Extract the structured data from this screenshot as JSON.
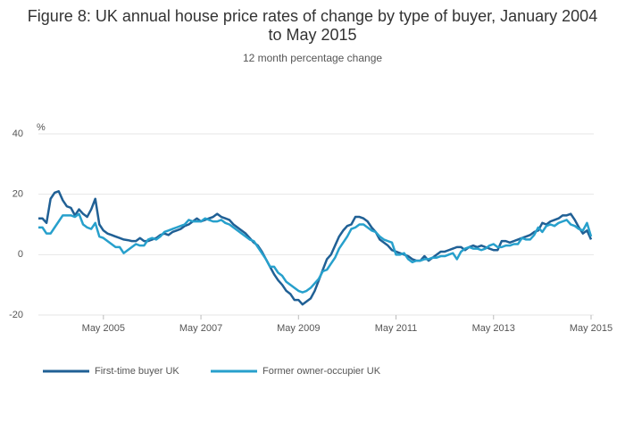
{
  "chart_data": {
    "type": "line",
    "title": "Figure 8: UK annual house price rates of change by type of buyer, January 2004 to May 2015",
    "subtitle": "12 month percentage change",
    "y_label": "%",
    "x": [
      "2004-01",
      "2004-02",
      "2004-03",
      "2004-04",
      "2004-05",
      "2004-06",
      "2004-07",
      "2004-08",
      "2004-09",
      "2004-10",
      "2004-11",
      "2004-12",
      "2005-01",
      "2005-02",
      "2005-03",
      "2005-04",
      "2005-05",
      "2005-06",
      "2005-07",
      "2005-08",
      "2005-09",
      "2005-10",
      "2005-11",
      "2005-12",
      "2006-01",
      "2006-02",
      "2006-03",
      "2006-04",
      "2006-05",
      "2006-06",
      "2006-07",
      "2006-08",
      "2006-09",
      "2006-10",
      "2006-11",
      "2006-12",
      "2007-01",
      "2007-02",
      "2007-03",
      "2007-04",
      "2007-05",
      "2007-06",
      "2007-07",
      "2007-08",
      "2007-09",
      "2007-10",
      "2007-11",
      "2007-12",
      "2008-01",
      "2008-02",
      "2008-03",
      "2008-04",
      "2008-05",
      "2008-06",
      "2008-07",
      "2008-08",
      "2008-09",
      "2008-10",
      "2008-11",
      "2008-12",
      "2009-01",
      "2009-02",
      "2009-03",
      "2009-04",
      "2009-05",
      "2009-06",
      "2009-07",
      "2009-08",
      "2009-09",
      "2009-10",
      "2009-11",
      "2009-12",
      "2010-01",
      "2010-02",
      "2010-03",
      "2010-04",
      "2010-05",
      "2010-06",
      "2010-07",
      "2010-08",
      "2010-09",
      "2010-10",
      "2010-11",
      "2010-12",
      "2011-01",
      "2011-02",
      "2011-03",
      "2011-04",
      "2011-05",
      "2011-06",
      "2011-07",
      "2011-08",
      "2011-09",
      "2011-10",
      "2011-11",
      "2011-12",
      "2012-01",
      "2012-02",
      "2012-03",
      "2012-04",
      "2012-05",
      "2012-06",
      "2012-07",
      "2012-08",
      "2012-09",
      "2012-10",
      "2012-11",
      "2012-12",
      "2013-01",
      "2013-02",
      "2013-03",
      "2013-04",
      "2013-05",
      "2013-06",
      "2013-07",
      "2013-08",
      "2013-09",
      "2013-10",
      "2013-11",
      "2013-12",
      "2014-01",
      "2014-02",
      "2014-03",
      "2014-04",
      "2014-05",
      "2014-06",
      "2014-07",
      "2014-08",
      "2014-09",
      "2014-10",
      "2014-11",
      "2014-12",
      "2015-01",
      "2015-02",
      "2015-03",
      "2015-04",
      "2015-05"
    ],
    "series": [
      {
        "name": "First-time buyer UK",
        "color": "#206095",
        "values": [
          12,
          12,
          10.5,
          18.5,
          20.5,
          21,
          18,
          16,
          15.5,
          13,
          15,
          13.5,
          12.5,
          15,
          18.5,
          10,
          8,
          7,
          6.5,
          6,
          5.5,
          5,
          4.8,
          4.5,
          4.5,
          5.5,
          4.5,
          4.5,
          5,
          5.5,
          6.5,
          7,
          6.5,
          7.5,
          8,
          8.5,
          9.5,
          10,
          11,
          12,
          11,
          11.5,
          12,
          12.5,
          13.5,
          12.5,
          12,
          11.5,
          10,
          9,
          8,
          7,
          5.5,
          4,
          3,
          1,
          -1.5,
          -4,
          -6.5,
          -8.5,
          -10,
          -12,
          -13,
          -15,
          -15,
          -16.5,
          -15.5,
          -14.5,
          -12,
          -8.5,
          -5,
          -1.5,
          0,
          3,
          6,
          8,
          9.5,
          10,
          12.5,
          12.5,
          12,
          11,
          9,
          7.5,
          5,
          4,
          3,
          1.5,
          1,
          0.5,
          0,
          -0.5,
          -1.5,
          -2,
          -2,
          -0.5,
          -2,
          -1,
          0,
          1,
          1,
          1.5,
          2,
          2.5,
          2.5,
          1.5,
          2.5,
          3,
          2.5,
          3,
          2.5,
          2,
          1.5,
          1.5,
          4.5,
          4.5,
          4,
          4.5,
          5,
          5.5,
          6,
          6.5,
          7.5,
          8,
          10.5,
          10,
          11,
          11.5,
          12,
          13,
          13,
          13.5,
          11.5,
          9,
          7,
          8,
          5
        ]
      },
      {
        "name": "Former owner-occupier UK",
        "color": "#27a0cc",
        "values": [
          9,
          9,
          7,
          7,
          9,
          11,
          13,
          13,
          13,
          12.5,
          13.5,
          10,
          9,
          8.5,
          10.5,
          6,
          5.5,
          4.5,
          3.5,
          2.5,
          2.5,
          0.5,
          1.5,
          2.5,
          3.5,
          3,
          3,
          5,
          5.5,
          5,
          6,
          7.5,
          8,
          8.5,
          9,
          9.5,
          10,
          11.5,
          11,
          11,
          11,
          12,
          11.5,
          11,
          11,
          11.5,
          10.5,
          10,
          9,
          8,
          7,
          6,
          5,
          4.5,
          2.5,
          0.5,
          -1.5,
          -4,
          -4,
          -6,
          -7,
          -9,
          -10,
          -11,
          -12,
          -12.5,
          -12,
          -11,
          -9.5,
          -8,
          -5.5,
          -5,
          -3,
          -1,
          2,
          4,
          6,
          8.5,
          9,
          10,
          10,
          9,
          8,
          7.5,
          6,
          5,
          4.5,
          4,
          0,
          0,
          0.5,
          -1.5,
          -2.5,
          -2,
          -2,
          -1.5,
          -1.5,
          -1,
          -1,
          -0.5,
          -0.5,
          0,
          0.5,
          -1.5,
          1,
          2,
          2.5,
          2,
          2,
          1.5,
          2,
          3,
          3.5,
          2.5,
          2.5,
          3,
          3,
          3.5,
          3.5,
          5.5,
          5,
          5,
          6.5,
          9,
          7.5,
          9.5,
          10,
          9.5,
          10.5,
          11,
          11.5,
          10,
          9.5,
          8.5,
          8,
          10.5,
          6
        ]
      }
    ],
    "xlim": [
      "2004-01",
      "2015-05"
    ],
    "xticks": [
      {
        "value": "2005-05",
        "label": "May 2005"
      },
      {
        "value": "2007-05",
        "label": "May 2007"
      },
      {
        "value": "2009-05",
        "label": "May 2009"
      },
      {
        "value": "2011-05",
        "label": "May 2011"
      },
      {
        "value": "2013-05",
        "label": "May 2013"
      },
      {
        "value": "2015-05",
        "label": "May 2015"
      }
    ],
    "ylim": [
      -20,
      40
    ],
    "yticks": [
      -20,
      0,
      20,
      40
    ],
    "grid": true,
    "legend": "bottom"
  }
}
